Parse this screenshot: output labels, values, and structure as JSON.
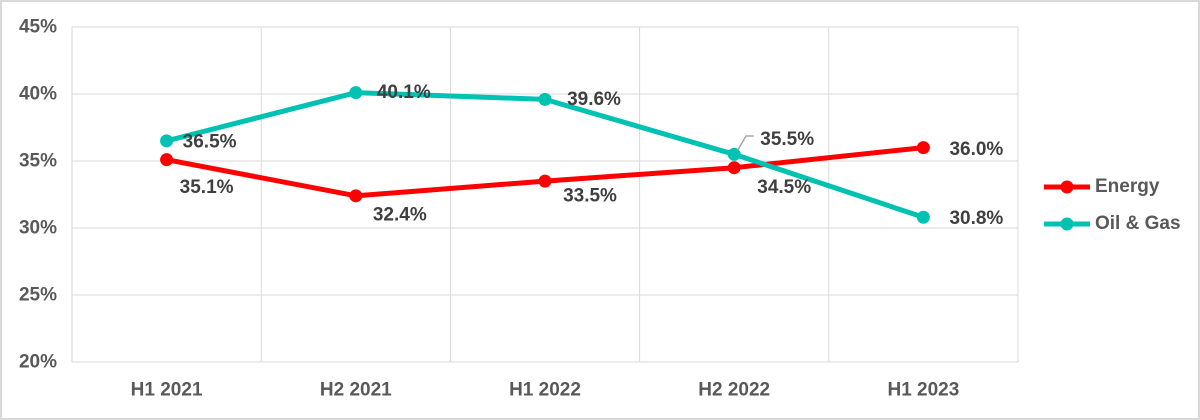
{
  "chart_data": {
    "type": "line",
    "categories": [
      "H1 2021",
      "H2 2021",
      "H1 2022",
      "H2 2022",
      "H1 2023"
    ],
    "series": [
      {
        "name": "Energy",
        "color": "#ff0000",
        "values": [
          35.1,
          32.4,
          33.5,
          34.5,
          36.0
        ]
      },
      {
        "name": "Oil & Gas",
        "color": "#00c2b3",
        "values": [
          36.5,
          40.1,
          39.6,
          35.5,
          30.8
        ]
      }
    ],
    "ylim": [
      20,
      45
    ],
    "ytick_step": 5,
    "ytick_suffix": "%",
    "grid": true,
    "legend_position": "right",
    "data_labels": true,
    "label_format": "0.0%"
  },
  "colors": {
    "grid": "#d9d9d9",
    "axis_text": "#595959",
    "data_label_text": "#3f3f3f",
    "leader_line": "#a6a6a6",
    "frame_border": "#d9d9d9",
    "background": "#ffffff"
  }
}
